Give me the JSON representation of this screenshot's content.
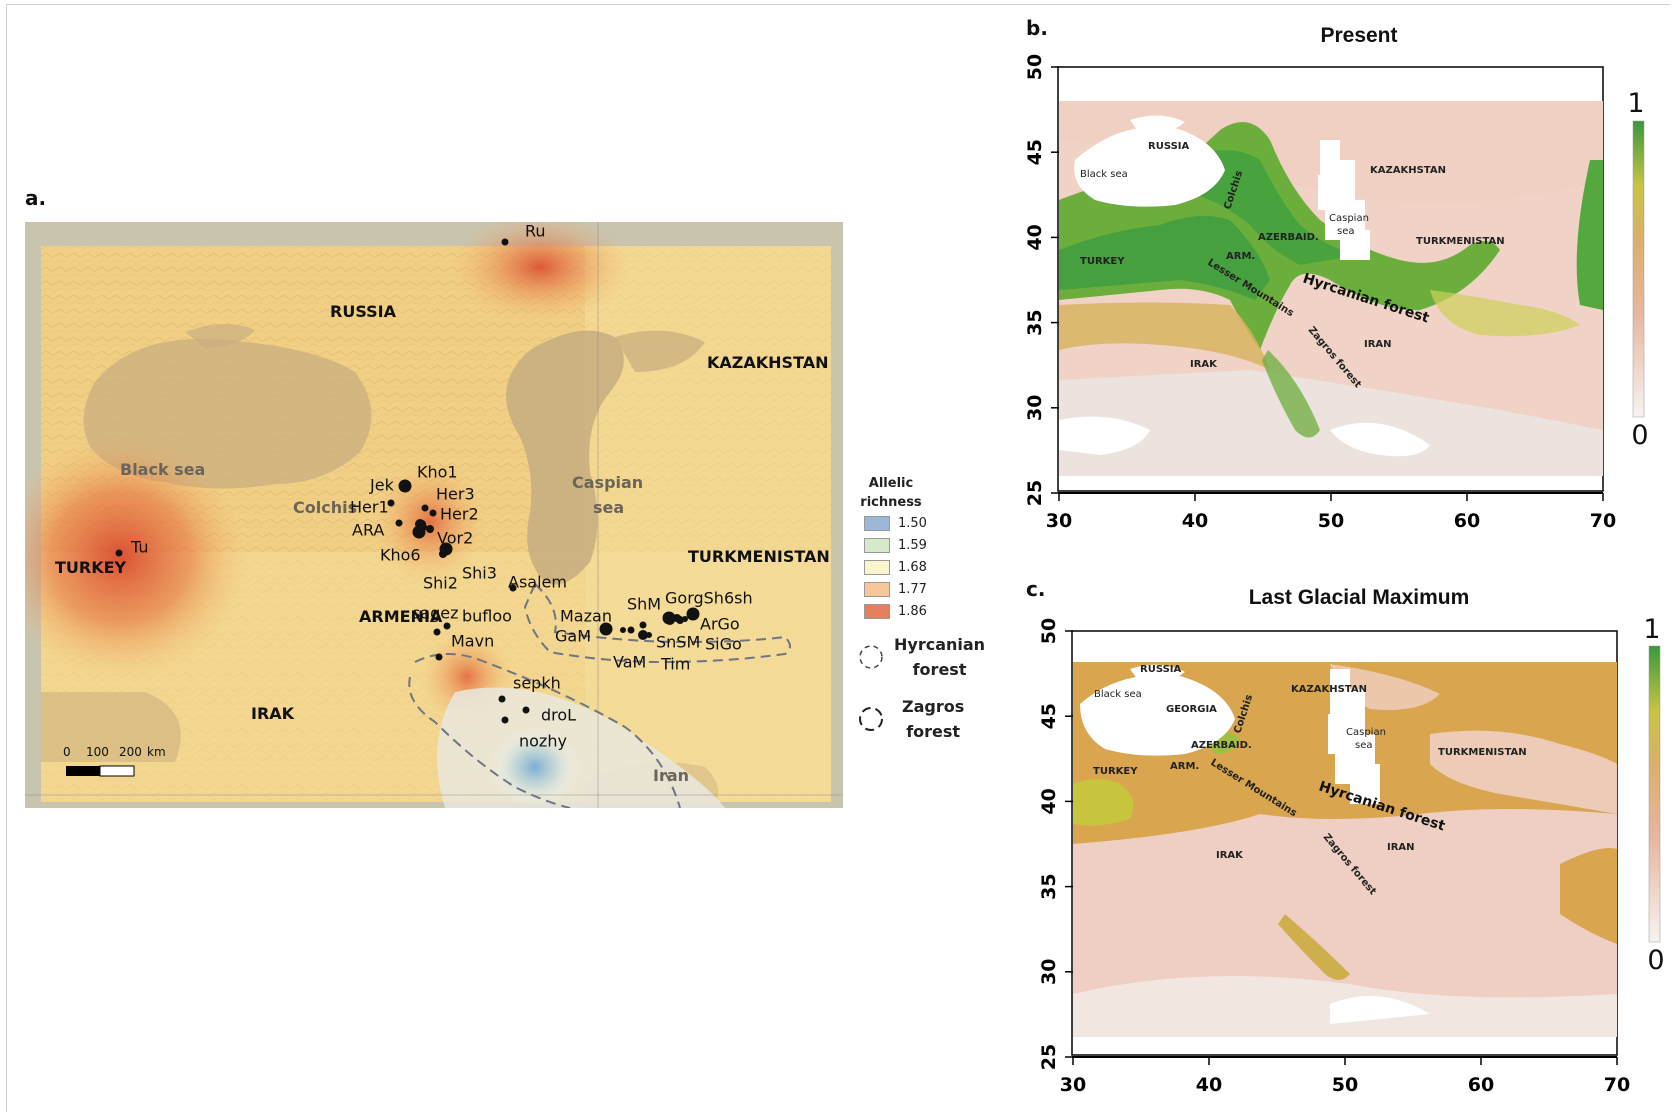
{
  "panel_a": {
    "label": "a.",
    "places": {
      "russia": "RUSSIA",
      "kazakhstan": "KAZAKHSTAN",
      "black_sea": "Black sea",
      "colchis": "Colchis",
      "caspian_1": "Caspian",
      "caspian_2": "sea",
      "turkmenistan": "TURKMENISTAN",
      "turkey": "TURKEY",
      "armenia": "ARMENIA",
      "irak": "IRAK",
      "iran": "Iran"
    },
    "sites": [
      {
        "name": "Ru",
        "size": "small"
      },
      {
        "name": "Tu",
        "size": "small"
      },
      {
        "name": "Jek",
        "size": "large"
      },
      {
        "name": "Kho1",
        "size": ""
      },
      {
        "name": "Her1",
        "size": "small"
      },
      {
        "name": "Her3",
        "size": "small"
      },
      {
        "name": "Her2",
        "size": "small"
      },
      {
        "name": "ARA",
        "size": "small"
      },
      {
        "name": "Vor2",
        "size": "large"
      },
      {
        "name": "Kho6",
        "size": "large"
      },
      {
        "name": "Shi2",
        "size": "medium"
      },
      {
        "name": "Shi3",
        "size": ""
      },
      {
        "name": "Asalem",
        "size": "small"
      },
      {
        "name": "sagez",
        "size": "small"
      },
      {
        "name": "bufloo",
        "size": "small"
      },
      {
        "name": "Mavn",
        "size": "small"
      },
      {
        "name": "Mazan",
        "size": ""
      },
      {
        "name": "GaM",
        "size": "large"
      },
      {
        "name": "ShM",
        "size": "small"
      },
      {
        "name": "GorgSh6sh",
        "size": "large"
      },
      {
        "name": "ArGo",
        "size": "large"
      },
      {
        "name": "SnSM",
        "size": "medium"
      },
      {
        "name": "SiGo",
        "size": ""
      },
      {
        "name": "VaM",
        "size": "small"
      },
      {
        "name": "Tim",
        "size": ""
      },
      {
        "name": "sepkh",
        "size": "small"
      },
      {
        "name": "droL",
        "size": "small"
      },
      {
        "name": "nozhy",
        "size": "small"
      }
    ],
    "scalebar": {
      "ticks": [
        "0",
        "100",
        "200"
      ],
      "unit": "km"
    },
    "legend": {
      "title_1": "Allelic",
      "title_2": "richness",
      "items": [
        {
          "value": "1.50",
          "color": "#9db7d9"
        },
        {
          "value": "1.59",
          "color": "#d6e9c8"
        },
        {
          "value": "1.68",
          "color": "#fbf5cf"
        },
        {
          "value": "1.77",
          "color": "#f7c79a"
        },
        {
          "value": "1.86",
          "color": "#e57f5e"
        }
      ],
      "forest_1": "Hyrcanian forest",
      "forest_1_a": "Hyrcanian",
      "forest_1_b": "forest",
      "forest_2_a": "Zagros",
      "forest_2_b": "forest"
    }
  },
  "panel_b": {
    "label": "b.",
    "title": "Present",
    "x_ticks": [
      "30",
      "40",
      "50",
      "60",
      "70"
    ],
    "y_ticks": [
      "25",
      "30",
      "35",
      "40",
      "45",
      "50"
    ],
    "colorbar": {
      "max": "1",
      "min": "0",
      "high_color": "#3f9b3f",
      "low_color": "#f4f0ee"
    },
    "places": {
      "russia": "RUSSIA",
      "kazakhstan": "KAZAKHSTAN",
      "black_sea": "Black sea",
      "colchis": "Colchis",
      "caspian_1": "Caspian",
      "caspian_2": "sea",
      "azerbaid": "AZERBAID.",
      "turkmenistan": "TURKMENISTAN",
      "turkey": "TURKEY",
      "arm": "ARM.",
      "lesser": "Lesser Mountains",
      "hyrcanian": "Hyrcanian forest",
      "zagros": "Zagros forest",
      "iran": "IRAN",
      "irak": "IRAK"
    }
  },
  "panel_c": {
    "label": "c.",
    "title": "Last Glacial Maximum",
    "x_ticks": [
      "30",
      "40",
      "50",
      "60",
      "70"
    ],
    "y_ticks": [
      "25",
      "30",
      "35",
      "40",
      "45",
      "50"
    ],
    "colorbar": {
      "max": "1",
      "min": "0"
    },
    "places": {
      "russia": "RUSSIA",
      "kazakhstan": "KAZAKHSTAN",
      "black_sea": "Black sea",
      "colchis": "Colchis",
      "georgia": "GEORGIA",
      "caspian_1": "Caspian",
      "caspian_2": "sea",
      "azerbaid": "AZERBAID.",
      "turkmenistan": "TURKMENISTAN",
      "turkey": "TURKEY",
      "arm": "ARM.",
      "lesser": "Lesser Mountains",
      "hyrcanian": "Hyrcanian forest",
      "zagros": "Zagros forest",
      "iran": "IRAN",
      "irak": "IRAK"
    }
  }
}
